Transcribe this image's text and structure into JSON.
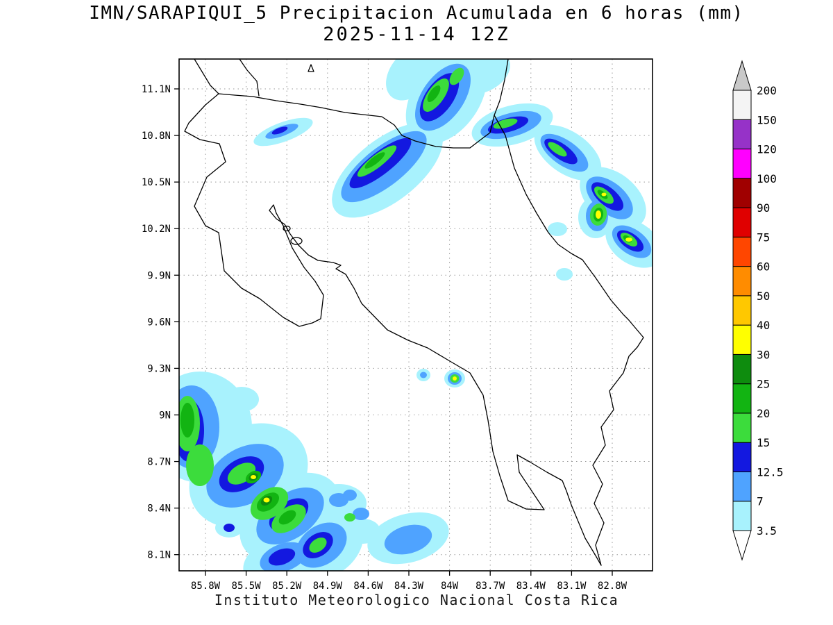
{
  "header": {
    "title": "IMN/SARAPIQUI_5 Precipitacion Acumulada en 6 horas (mm)",
    "valid_time": "2025-11-14 12Z"
  },
  "footer": {
    "credit": "Instituto Meteorologico Nacional Costa Rica"
  },
  "chart_data": {
    "type": "heatmap",
    "title": "IMN/SARAPIQUI_5 Precipitacion Acumulada en 6 horas (mm)",
    "subtitle": "2025-11-14 12Z",
    "units": "mm",
    "region": "Costa Rica",
    "x_axis": "longitude (degrees West)",
    "y_axis": "latitude (degrees North)",
    "x_ticks": [
      "85.8W",
      "85.5W",
      "85.2W",
      "84.9W",
      "84.6W",
      "84.3W",
      "84W",
      "83.7W",
      "83.4W",
      "83.1W",
      "82.8W"
    ],
    "y_ticks": [
      "11.1N",
      "10.8N",
      "10.5N",
      "10.2N",
      "9.9N",
      "9.6N",
      "9.3N",
      "9N",
      "8.7N",
      "8.4N",
      "8.1N"
    ],
    "grid": "dotted",
    "legend_position": "right-colorbar",
    "colorbar": {
      "boundaries": [
        "3.5",
        "7",
        "12.5",
        "15",
        "20",
        "25",
        "30",
        "40",
        "50",
        "60",
        "75",
        "90",
        "100",
        "120",
        "150",
        "200"
      ],
      "segment_colors_bottom_to_top": [
        "#a8f2fd",
        "#4fa3ff",
        "#1318e0",
        "#3cdc3c",
        "#12b412",
        "#0e8c0e",
        "#ffff00",
        "#ffc800",
        "#ff8c00",
        "#ff4600",
        "#e00000",
        "#a00000",
        "#ff00ff",
        "#9632c8",
        "#f4f4f4"
      ],
      "below_min_color": "#ffffff",
      "above_max_color": "#c9c9c9"
    },
    "features": [
      {
        "area": "Northern band along Nicaragua border and Caribbean slope, elongated NE-SW",
        "lat_range": "10.2N-11.3N",
        "lon_range": "85.6W-82.6W",
        "peak_mm": "20-30"
      },
      {
        "area": "Caribbean coastal cells near Limon offshore",
        "lat_range": "10.1N-10.5N",
        "lon_range": "83.1W-82.7W",
        "peak_mm": "25-40"
      },
      {
        "area": "Isolated cells central Pacific coast near 9.2N 84.0W",
        "lat_range": "9.1N-9.3N",
        "lon_range": "84.2W-83.9W",
        "peak_mm": "30-40"
      },
      {
        "area": "Large southwest Pacific offshore system",
        "lat_range": "8.0N-9.1N",
        "lon_range": "86.0W-84.3W",
        "peak_mm": "30-45"
      },
      {
        "area": "Cell south of coast near 8.3N 84.3W",
        "lat_range": "8.1N-8.4N",
        "lon_range": "84.5W-84.1W",
        "peak_mm": "7-15"
      }
    ]
  }
}
